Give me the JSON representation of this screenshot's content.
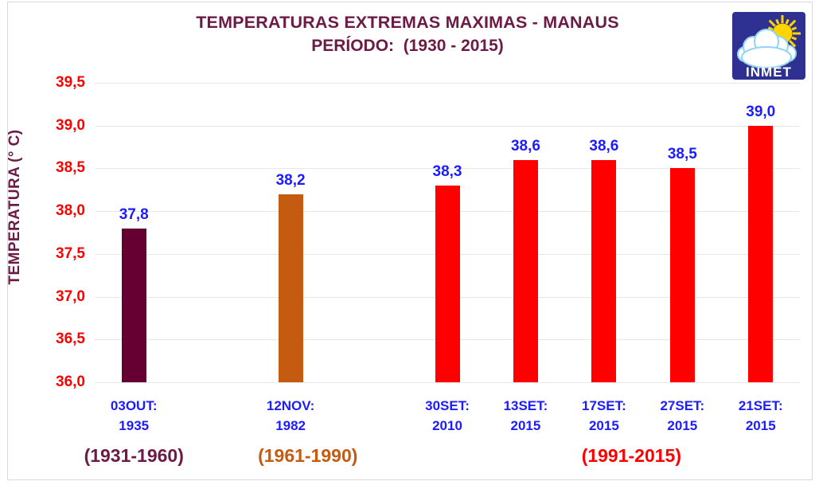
{
  "chart_data": {
    "type": "bar",
    "title": "TEMPERATURAS EXTREMAS MAXIMAS - MANAUS",
    "subtitle": "PERÍODO:  (1930 - 2015)",
    "ylabel": "TEMPERATURA (° C)",
    "xlabel": "",
    "ylim": [
      36.0,
      39.5
    ],
    "ytick_step": 0.5,
    "yticks": [
      "39,5",
      "39,0",
      "38,5",
      "38,0",
      "37,5",
      "37,0",
      "36,5",
      "36,0"
    ],
    "grid": true,
    "legend": "none",
    "num_slots": 9,
    "bars": [
      {
        "slot": 0,
        "date_label": "03OUT:",
        "year_label": "1935",
        "value": 37.8,
        "value_label": "37,8",
        "color": "#660033"
      },
      {
        "slot": 2,
        "date_label": "12NOV:",
        "year_label": "1982",
        "value": 38.2,
        "value_label": "38,2",
        "color": "#C55A11"
      },
      {
        "slot": 4,
        "date_label": "30SET:",
        "year_label": "2010",
        "value": 38.3,
        "value_label": "38,3",
        "color": "#FF0000"
      },
      {
        "slot": 5,
        "date_label": "13SET:",
        "year_label": "2015",
        "value": 38.6,
        "value_label": "38,6",
        "color": "#FF0000"
      },
      {
        "slot": 6,
        "date_label": "17SET:",
        "year_label": "2015",
        "value": 38.6,
        "value_label": "38,6",
        "color": "#FF0000"
      },
      {
        "slot": 7,
        "date_label": "27SET:",
        "year_label": "2015",
        "value": 38.5,
        "value_label": "38,5",
        "color": "#FF0000"
      },
      {
        "slot": 8,
        "date_label": "21SET:",
        "year_label": "2015",
        "value": 39.0,
        "value_label": "39,0",
        "color": "#FF0000"
      }
    ],
    "groups": [
      {
        "label": "(1931-1960)",
        "color": "#6B1B45",
        "center_slot": 0
      },
      {
        "label": "(1961-1990)",
        "color": "#C55A11",
        "center_slot": 2.22
      },
      {
        "label": "(1991-2015)",
        "color": "#FF0000",
        "center_slot": 6.35
      }
    ],
    "colors": {
      "value_label": "#1C1CFF",
      "xtick": "#1C1CFF",
      "ytick": "#FF0000",
      "gridline": "#E7E7E7",
      "title": "#6B1B45"
    }
  },
  "logo": {
    "text": "INMET",
    "bg": "#2E3092",
    "sun": "#FFD500",
    "cloud_fill": "#FFFFFF",
    "cloud_outline": "#8FD4F2",
    "text_color": "#FFFFFF"
  }
}
